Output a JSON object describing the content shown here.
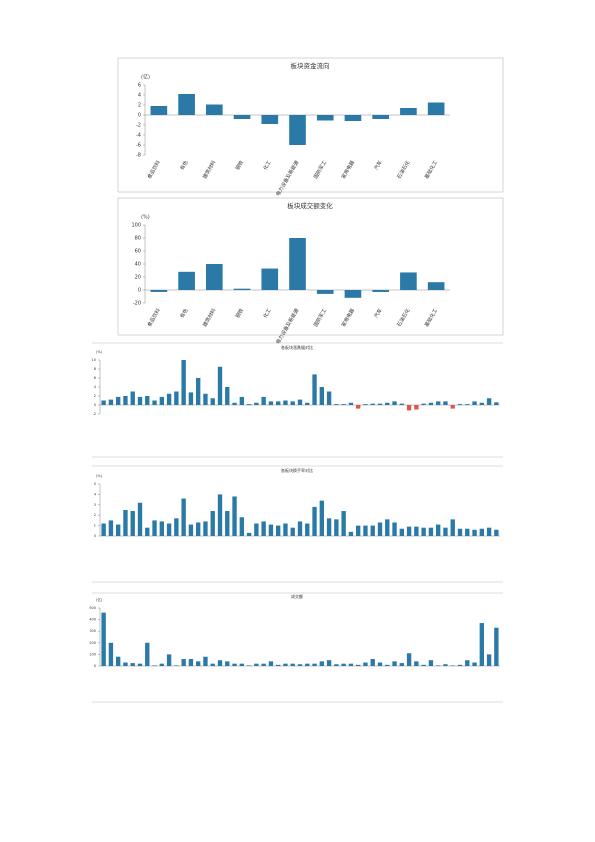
{
  "chart_data": [
    {
      "type": "bar",
      "title": "板块资金流向",
      "y_label": "(亿)",
      "categories": [
        "食品饮料",
        "有色",
        "建筑材料",
        "钢铁",
        "化工",
        "电力设备及新能源",
        "国防军工",
        "家用电器",
        "汽车",
        "石油石化",
        "基础化工"
      ],
      "values": [
        1.8,
        4.2,
        2.1,
        -0.8,
        -1.8,
        -6,
        -1.1,
        -1.2,
        -0.8,
        1.4,
        2.5
      ],
      "color": "#2a79a6",
      "ylim": [
        -8,
        6
      ],
      "yticks": [
        6,
        4,
        2,
        0,
        -2,
        -4,
        -6,
        -8
      ]
    },
    {
      "type": "bar",
      "title": "板块成交额变化",
      "y_label": "(%)",
      "categories": [
        "食品饮料",
        "有色",
        "建筑材料",
        "钢铁",
        "化工",
        "电力设备及新能源",
        "国防军工",
        "家用电器",
        "汽车",
        "石油石化",
        "基础化工"
      ],
      "values": [
        -3,
        28,
        40,
        2,
        33,
        80,
        -6,
        -12,
        -3,
        27,
        12
      ],
      "color": "#2a79a6",
      "ylim": [
        -20,
        100
      ],
      "yticks": [
        100,
        80,
        60,
        40,
        20,
        0,
        -20
      ]
    },
    {
      "type": "bar",
      "title": "各板块涨跌幅对比",
      "y_label": "(%)",
      "categories": [
        null,
        null,
        null,
        null,
        null,
        null,
        null,
        null,
        null,
        null,
        null,
        null,
        null,
        null,
        null,
        null,
        null,
        null,
        null,
        null,
        null,
        null,
        null,
        null,
        null,
        null,
        null,
        null,
        null,
        null,
        null,
        null,
        null,
        null,
        null,
        null,
        null,
        null,
        null,
        null,
        null,
        null,
        null,
        null,
        null,
        null,
        null,
        null,
        null,
        null,
        null,
        null,
        null,
        null,
        null
      ],
      "values": [
        1,
        1.2,
        1.8,
        2,
        3,
        1.8,
        2,
        1,
        1.8,
        2.5,
        3,
        10,
        2.8,
        6,
        2.5,
        1.5,
        8.5,
        4,
        0.5,
        1.8,
        0.2,
        0.5,
        1.8,
        0.8,
        0.8,
        1,
        0.8,
        1.2,
        0.5,
        6.8,
        4,
        3,
        0.2,
        0.2,
        0.5,
        -0.8,
        0.2,
        0.3,
        0.3,
        0.5,
        0.8,
        0.3,
        -1.2,
        -1,
        0.3,
        0.5,
        0.8,
        0.8,
        -0.8,
        0.2,
        0.2,
        0.8,
        0.5,
        1.5,
        0.6
      ],
      "color": "#2a79a6",
      "negative_color": "#e0564c",
      "ylim": [
        -2,
        10
      ],
      "yticks": [
        10,
        8,
        6,
        4,
        2,
        0,
        -2
      ]
    },
    {
      "type": "bar",
      "title": "各板块换手率对比",
      "y_label": "(%)",
      "categories": [
        null,
        null,
        null,
        null,
        null,
        null,
        null,
        null,
        null,
        null,
        null,
        null,
        null,
        null,
        null,
        null,
        null,
        null,
        null,
        null,
        null,
        null,
        null,
        null,
        null,
        null,
        null,
        null,
        null,
        null,
        null,
        null,
        null,
        null,
        null,
        null,
        null,
        null,
        null,
        null,
        null,
        null,
        null,
        null,
        null,
        null,
        null,
        null,
        null,
        null,
        null,
        null,
        null,
        null,
        null
      ],
      "values": [
        1.2,
        1.5,
        1.1,
        2.5,
        2.4,
        3.2,
        0.8,
        1.5,
        1.4,
        1.2,
        1.7,
        3.6,
        1.1,
        1.3,
        1.4,
        2.4,
        4,
        2.4,
        3.8,
        1.8,
        0.3,
        1.2,
        1.4,
        1.1,
        1,
        1.2,
        0.8,
        1.4,
        1.2,
        2.8,
        3.4,
        1.7,
        1.6,
        2.4,
        0.4,
        1,
        1,
        1,
        1.3,
        1.6,
        1.3,
        0.7,
        0.9,
        0.9,
        0.8,
        0.8,
        1.1,
        0.8,
        1.6,
        0.7,
        0.7,
        0.6,
        0.7,
        0.8,
        0.6
      ],
      "color": "#2a79a6",
      "ylim": [
        0,
        5
      ],
      "yticks": [
        5,
        4,
        3,
        2,
        1,
        0
      ]
    },
    {
      "type": "bar",
      "title": "成交额",
      "y_label": "(亿)",
      "categories": [
        null,
        null,
        null,
        null,
        null,
        null,
        null,
        null,
        null,
        null,
        null,
        null,
        null,
        null,
        null,
        null,
        null,
        null,
        null,
        null,
        null,
        null,
        null,
        null,
        null,
        null,
        null,
        null,
        null,
        null,
        null,
        null,
        null,
        null,
        null,
        null,
        null,
        null,
        null,
        null,
        null,
        null,
        null,
        null,
        null,
        null,
        null,
        null,
        null,
        null,
        null,
        null,
        null,
        null,
        null
      ],
      "values": [
        460,
        200,
        80,
        30,
        25,
        20,
        200,
        5,
        20,
        100,
        5,
        60,
        60,
        40,
        80,
        20,
        50,
        40,
        20,
        20,
        5,
        20,
        20,
        40,
        10,
        20,
        20,
        15,
        20,
        20,
        40,
        50,
        15,
        20,
        20,
        10,
        30,
        60,
        30,
        10,
        40,
        25,
        110,
        40,
        10,
        50,
        5,
        15,
        5,
        10,
        50,
        30,
        370,
        100,
        330
      ],
      "color": "#2a79a6",
      "ylim": [
        0,
        500
      ],
      "yticks": [
        500,
        400,
        300,
        200,
        100,
        0
      ]
    }
  ]
}
